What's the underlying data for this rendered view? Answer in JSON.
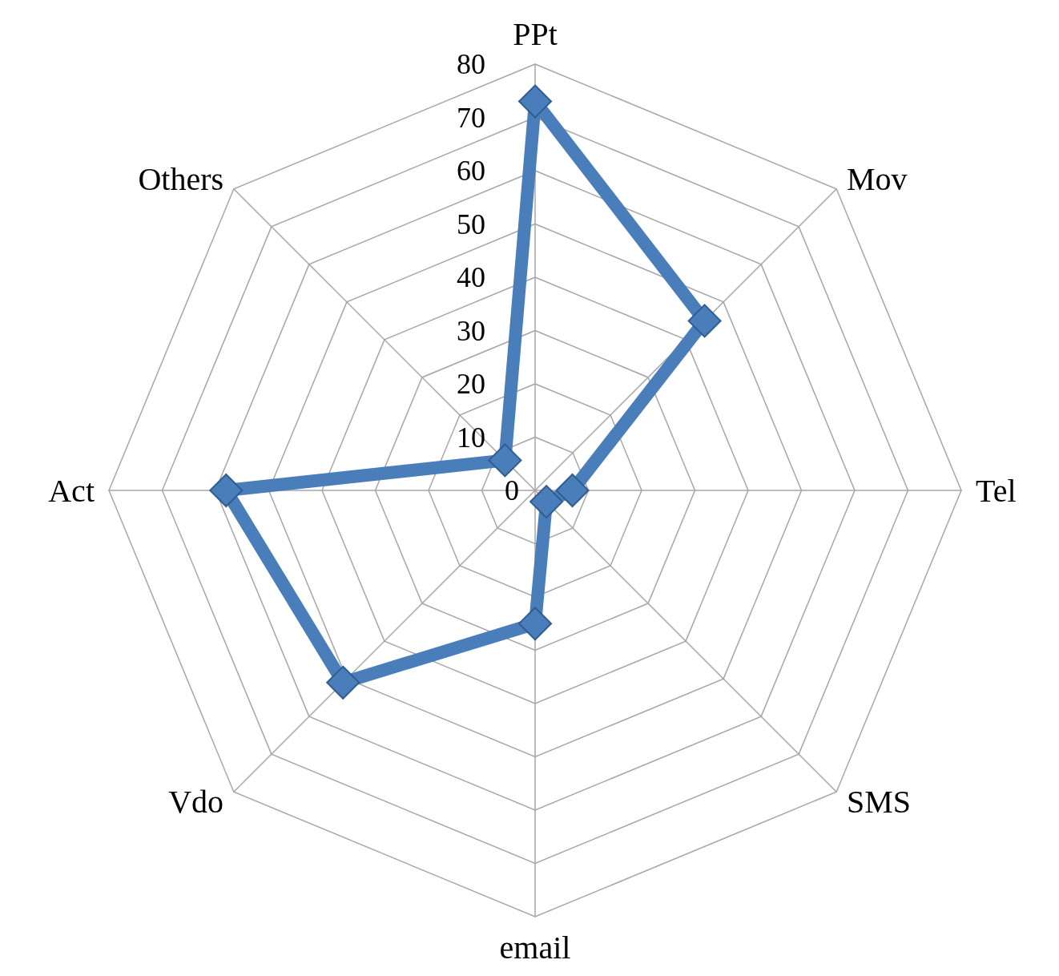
{
  "chart_data": {
    "type": "radar",
    "categories": [
      "PPt",
      "Mov",
      "Tel",
      "SMS",
      "email",
      "Vdo",
      "Act",
      "Others"
    ],
    "series": [
      {
        "color": "#4a7ebb",
        "values": [
          73,
          45,
          7,
          3,
          25,
          51,
          58,
          8
        ]
      }
    ],
    "ylim": [
      0,
      80
    ],
    "yticks": [
      0,
      10,
      20,
      30,
      40,
      50,
      60,
      70,
      80
    ],
    "grid": true,
    "marker": "diamond",
    "line_style": "solid"
  }
}
